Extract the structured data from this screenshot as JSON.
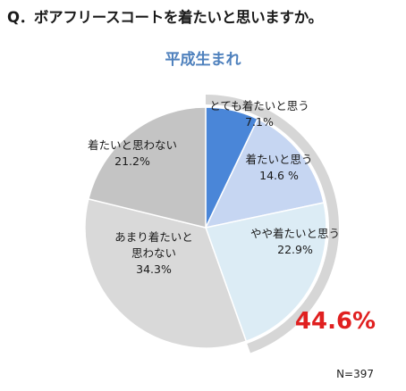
{
  "question": "Q．ボアフリースコートを着たいと思いますか。",
  "subtitle": "平成生まれ",
  "sample_size": "N=397",
  "highlight": {
    "text": "44.6%",
    "color": "#e02020"
  },
  "chart_data": {
    "type": "pie",
    "categories": [
      "とても着たいと思う",
      "着たいと思う",
      "やや着たいと思う",
      "あまり着たいと思わない",
      "着たいと思わない"
    ],
    "values": [
      7.1,
      14.6,
      22.9,
      34.3,
      21.2
    ],
    "value_labels": [
      "7.1%",
      "14.6 %",
      "22.9%",
      "34.3%",
      "21.2%"
    ],
    "colors": [
      "#4a86d8",
      "#c6d6f2",
      "#dcecf5",
      "#d9d9d9",
      "#c4c4c4"
    ],
    "start_angle_deg": 0,
    "direction": "clockwise",
    "title": "平成生まれ"
  }
}
